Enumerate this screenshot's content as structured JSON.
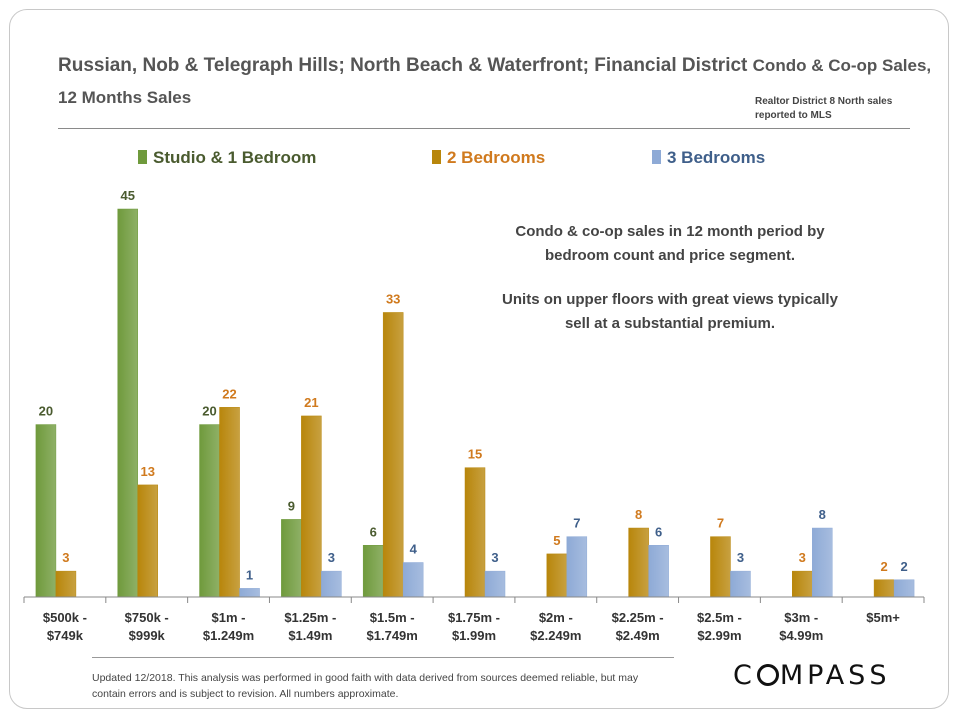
{
  "title": {
    "main": "Russian, Nob & Telegraph Hills; North Beach & Waterfront; Financial District",
    "sub": "Condo & Co-op Sales, 12 Months Sales"
  },
  "source_note": "Realtor District 8 North sales reported to MLS",
  "annotation": {
    "line1": "Condo & co-op sales in 12 month period by",
    "line2": "bedroom count and price segment.",
    "line3": "Units on upper floors with great views typically",
    "line4": "sell at a substantial premium."
  },
  "footnote": "Updated 12/2018. This analysis was performed in good faith with data derived from sources deemed reliable, but may contain errors and is subject to revision. All numbers approximate.",
  "logo": {
    "before": "C",
    "after": "MPASS"
  },
  "colors": {
    "studio": "#6f9a3c",
    "two_bed": "#b8860b",
    "three_bed": "#8eaad6",
    "label_studio": "#4a5b2f",
    "label_two": "#d07a1e",
    "label_three": "#3f5f8a"
  },
  "chart_data": {
    "type": "bar",
    "title": "Russian, Nob & Telegraph Hills; North Beach & Waterfront; Financial District Condo & Co-op Sales, 12 Months Sales",
    "categories": [
      [
        "$500k -",
        "$749k"
      ],
      [
        "$750k -",
        "$999k"
      ],
      [
        "$1m -",
        "$1.249m"
      ],
      [
        "$1.25m -",
        "$1.49m"
      ],
      [
        "$1.5m -",
        "$1.749m"
      ],
      [
        "$1.75m -",
        "$1.99m"
      ],
      [
        "$2m -",
        "$2.249m"
      ],
      [
        "$2.25m -",
        "$2.49m"
      ],
      [
        "$2.5m -",
        "$2.99m"
      ],
      [
        "$3m -",
        "$4.99m"
      ],
      [
        "$5m+"
      ]
    ],
    "series": [
      {
        "name": "Studio & 1 Bedroom",
        "values": [
          20,
          45,
          20,
          9,
          6,
          null,
          null,
          null,
          null,
          null,
          null
        ]
      },
      {
        "name": "2 Bedrooms",
        "values": [
          3,
          13,
          22,
          21,
          33,
          15,
          5,
          8,
          7,
          3,
          2
        ]
      },
      {
        "name": "3 Bedrooms",
        "values": [
          null,
          null,
          1,
          3,
          4,
          3,
          7,
          6,
          3,
          8,
          2
        ]
      }
    ],
    "ylim": [
      0,
      45
    ],
    "grid": false,
    "legend": "top"
  }
}
